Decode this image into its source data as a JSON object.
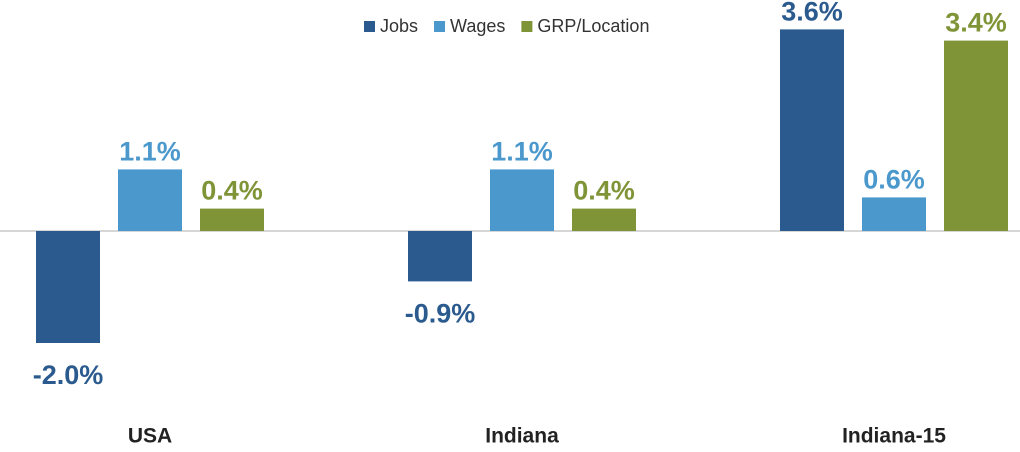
{
  "chart_data": {
    "type": "bar",
    "categories": [
      "USA",
      "Indiana",
      "Indiana-15"
    ],
    "series": [
      {
        "name": "Jobs",
        "color": "#2b5b8e",
        "values": [
          -2.0,
          -0.9,
          3.6
        ],
        "value_labels": [
          "-2.0%",
          "-0.9%",
          "3.6%"
        ]
      },
      {
        "name": "Wages",
        "color": "#4b98cd",
        "values": [
          1.1,
          1.1,
          0.6
        ],
        "value_labels": [
          "1.1%",
          "1.1%",
          "0.6%"
        ]
      },
      {
        "name": "GRP/Location",
        "color": "#7f9337",
        "values": [
          0.4,
          0.4,
          3.4
        ],
        "value_labels": [
          "0.4%",
          "0.4%",
          "3.4%"
        ]
      }
    ],
    "ylim": [
      -3,
      4.1
    ],
    "legend": "top"
  }
}
